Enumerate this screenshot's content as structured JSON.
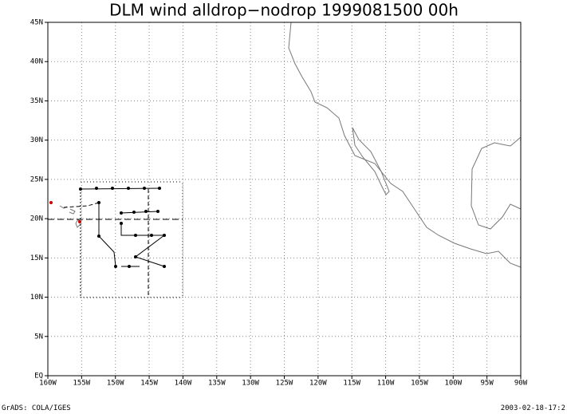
{
  "map": {
    "title": "DLM wind alldrop−nodrop 1999081500 00h",
    "lonlim": [
      -160,
      -90
    ],
    "latlim": [
      0,
      45
    ],
    "xticks": [
      {
        "value": -160,
        "label": "160W"
      },
      {
        "value": -155,
        "label": "155W"
      },
      {
        "value": -150,
        "label": "150W"
      },
      {
        "value": -145,
        "label": "145W"
      },
      {
        "value": -140,
        "label": "140W"
      },
      {
        "value": -135,
        "label": "135W"
      },
      {
        "value": -130,
        "label": "130W"
      },
      {
        "value": -125,
        "label": "125W"
      },
      {
        "value": -120,
        "label": "120W"
      },
      {
        "value": -115,
        "label": "115W"
      },
      {
        "value": -110,
        "label": "110W"
      },
      {
        "value": -105,
        "label": "105W"
      },
      {
        "value": -100,
        "label": "100W"
      },
      {
        "value": -95,
        "label": "95W"
      },
      {
        "value": -90,
        "label": "90W"
      }
    ],
    "yticks": [
      {
        "value": 0,
        "label": "EQ"
      },
      {
        "value": 5,
        "label": "5N"
      },
      {
        "value": 10,
        "label": "10N"
      },
      {
        "value": 15,
        "label": "15N"
      },
      {
        "value": 20,
        "label": "20N"
      },
      {
        "value": 25,
        "label": "25N"
      },
      {
        "value": 30,
        "label": "30N"
      },
      {
        "value": 35,
        "label": "35N"
      },
      {
        "value": 40,
        "label": "40N"
      },
      {
        "value": 45,
        "label": "45N"
      }
    ],
    "grid": true,
    "footer_left": "GrADS: COLA/IGES",
    "footer_right": "2003-02-18-17:2"
  }
}
